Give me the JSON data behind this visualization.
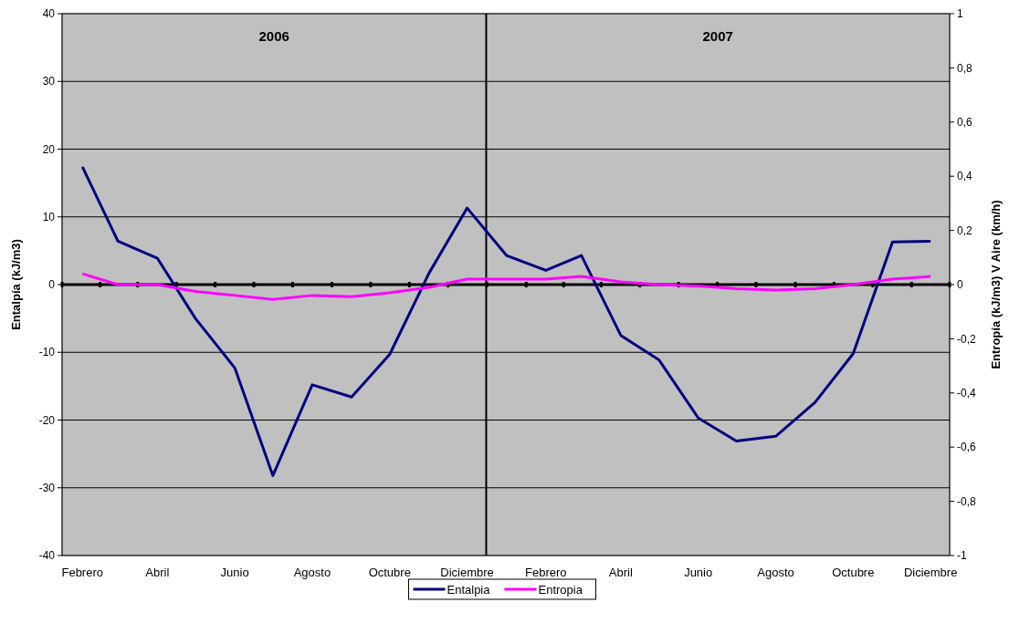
{
  "chart_data": {
    "type": "line",
    "ylabel": "Entalpía (kJ/m3)",
    "y2label": "Entropía (kJ/m3) V Aire (km/h)",
    "x": [
      "2006-02",
      "2006-03",
      "2006-04",
      "2006-05",
      "2006-06",
      "2006-07",
      "2006-08",
      "2006-09",
      "2006-10",
      "2006-11",
      "2006-12",
      "2007-01",
      "2007-02",
      "2007-03",
      "2007-04",
      "2007-05",
      "2007-06",
      "2007-07",
      "2007-08",
      "2007-09",
      "2007-10",
      "2007-11",
      "2007-12"
    ],
    "xlim": [
      "2006-01-16",
      "2007-12-16"
    ],
    "xticks": [
      {
        "value": "2006-02",
        "label": "Febrero"
      },
      {
        "value": "2006-04",
        "label": "Abril"
      },
      {
        "value": "2006-06",
        "label": "Junio"
      },
      {
        "value": "2006-08",
        "label": "Agosto"
      },
      {
        "value": "2006-10",
        "label": "Octubre"
      },
      {
        "value": "2006-12",
        "label": "Diciembre"
      },
      {
        "value": "2007-02",
        "label": "Febrero"
      },
      {
        "value": "2007-04",
        "label": "Abril"
      },
      {
        "value": "2007-06",
        "label": "Junio"
      },
      {
        "value": "2007-08",
        "label": "Agosto"
      },
      {
        "value": "2007-10",
        "label": "Octubre"
      },
      {
        "value": "2007-12",
        "label": "Diciembre"
      }
    ],
    "series": [
      {
        "name": "Entalpia",
        "color": "#000080",
        "values": [
          17.4,
          6.4,
          3.9,
          -5,
          -12.3,
          -28.2,
          -14.8,
          -16.6,
          -10.3,
          1.7,
          11.3,
          4.3,
          2.1,
          4.3,
          -7.5,
          -11.1,
          -19.7,
          -23.1,
          -22.4,
          -17.4,
          -10.2,
          6.3,
          6.4
        ]
      },
      {
        "name": "Entropia",
        "color": "#ff00ff",
        "axis": "y2",
        "values": [
          0.04,
          0,
          0,
          -0.025,
          -0.04,
          -0.055,
          -0.04,
          -0.045,
          -0.03,
          -0.01,
          0.02,
          0.02,
          0.02,
          0.03,
          0.01,
          0,
          -0.005,
          -0.015,
          -0.02,
          -0.015,
          0,
          0.02,
          0.03
        ]
      }
    ],
    "ylim": [
      -40,
      40
    ],
    "yticks": [
      -40,
      -30,
      -20,
      -10,
      0,
      10,
      20,
      30,
      40
    ],
    "y2lim": [
      -1,
      1
    ],
    "y2ticks": [
      {
        "value": -1,
        "label": "-1"
      },
      {
        "value": -0.8,
        "label": "-0,8"
      },
      {
        "value": -0.6,
        "label": "-0,6"
      },
      {
        "value": -0.4,
        "label": "-0,4"
      },
      {
        "value": -0.2,
        "label": "-0,2"
      },
      {
        "value": 0,
        "label": "0"
      },
      {
        "value": 0.2,
        "label": "0,2"
      },
      {
        "value": 0.4,
        "label": "0,4"
      },
      {
        "value": 0.6,
        "label": "0,6"
      },
      {
        "value": 0.8,
        "label": "0,8"
      },
      {
        "value": 1,
        "label": "1"
      }
    ],
    "ref_lines": [
      {
        "axis": "x",
        "value": "2006-12-16",
        "color": "#000000"
      }
    ],
    "annotations": [
      "2006",
      "2007"
    ],
    "grid": "y",
    "legend": "bottom",
    "marker": "none",
    "line_style": "solid"
  }
}
